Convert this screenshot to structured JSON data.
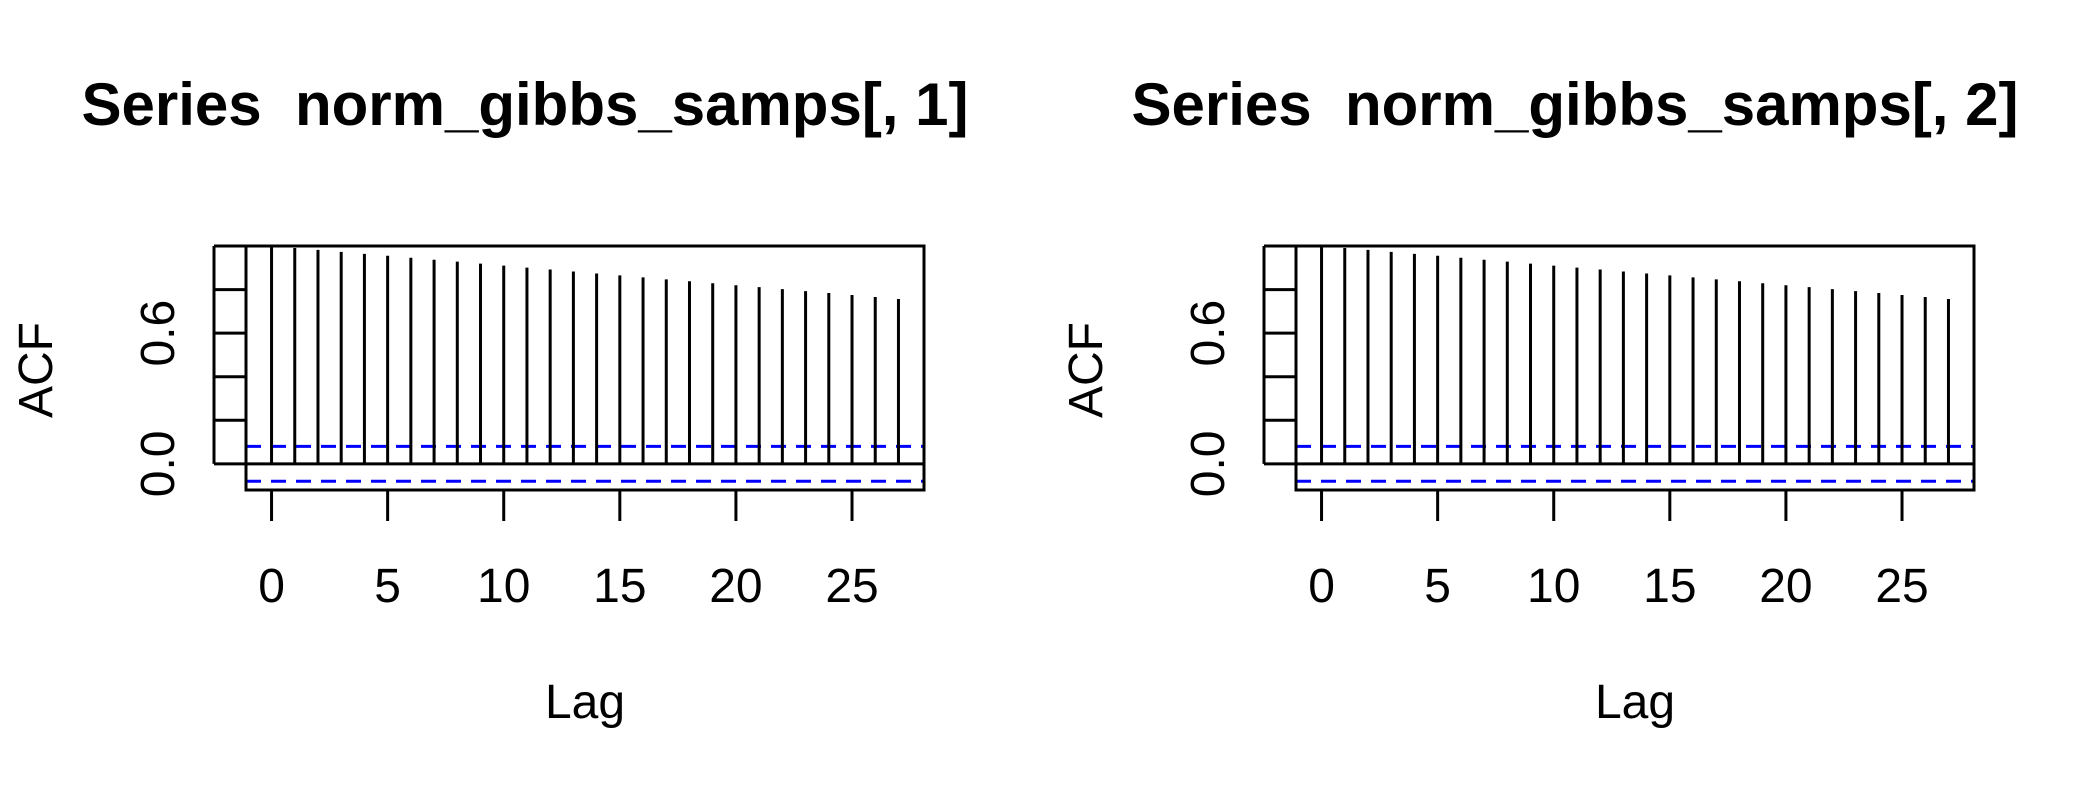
{
  "chart_data": [
    {
      "type": "bar",
      "title": "Series  norm_gibbs_samps[, 1]",
      "xlabel": "Lag",
      "ylabel": "ACF",
      "xlim": [
        -1.1,
        28.1
      ],
      "ylim": [
        -0.12,
        1.0
      ],
      "x_ticks": [
        0,
        5,
        10,
        15,
        20,
        25
      ],
      "y_ticks": [
        0.0,
        0.2,
        0.4,
        0.6,
        0.8,
        1.0
      ],
      "y_tick_labels": [
        "0.0",
        "",
        "",
        "0.6",
        "",
        ""
      ],
      "lags": [
        0,
        1,
        2,
        3,
        4,
        5,
        6,
        7,
        8,
        9,
        10,
        11,
        12,
        13,
        14,
        15,
        16,
        17,
        18,
        19,
        20,
        21,
        22,
        23,
        24,
        25,
        26,
        27
      ],
      "acf": [
        1.0,
        0.991,
        0.982,
        0.973,
        0.964,
        0.955,
        0.946,
        0.937,
        0.928,
        0.919,
        0.91,
        0.901,
        0.892,
        0.883,
        0.874,
        0.865,
        0.856,
        0.847,
        0.838,
        0.829,
        0.82,
        0.811,
        0.802,
        0.793,
        0.784,
        0.775,
        0.766,
        0.757
      ],
      "ci_bounds": [
        0.08,
        -0.08
      ],
      "ci_color": "#0000ff",
      "grid": false
    },
    {
      "type": "bar",
      "title": "Series  norm_gibbs_samps[, 2]",
      "xlabel": "Lag",
      "ylabel": "ACF",
      "xlim": [
        -1.1,
        28.1
      ],
      "ylim": [
        -0.12,
        1.0
      ],
      "x_ticks": [
        0,
        5,
        10,
        15,
        20,
        25
      ],
      "y_ticks": [
        0.0,
        0.2,
        0.4,
        0.6,
        0.8,
        1.0
      ],
      "y_tick_labels": [
        "0.0",
        "",
        "",
        "0.6",
        "",
        ""
      ],
      "lags": [
        0,
        1,
        2,
        3,
        4,
        5,
        6,
        7,
        8,
        9,
        10,
        11,
        12,
        13,
        14,
        15,
        16,
        17,
        18,
        19,
        20,
        21,
        22,
        23,
        24,
        25,
        26,
        27
      ],
      "acf": [
        1.0,
        0.991,
        0.982,
        0.973,
        0.964,
        0.955,
        0.946,
        0.937,
        0.928,
        0.919,
        0.91,
        0.901,
        0.892,
        0.883,
        0.874,
        0.865,
        0.856,
        0.847,
        0.838,
        0.829,
        0.82,
        0.811,
        0.802,
        0.793,
        0.784,
        0.775,
        0.766,
        0.757
      ],
      "ci_bounds": [
        0.08,
        -0.08
      ],
      "ci_color": "#0000ff",
      "grid": false
    }
  ]
}
